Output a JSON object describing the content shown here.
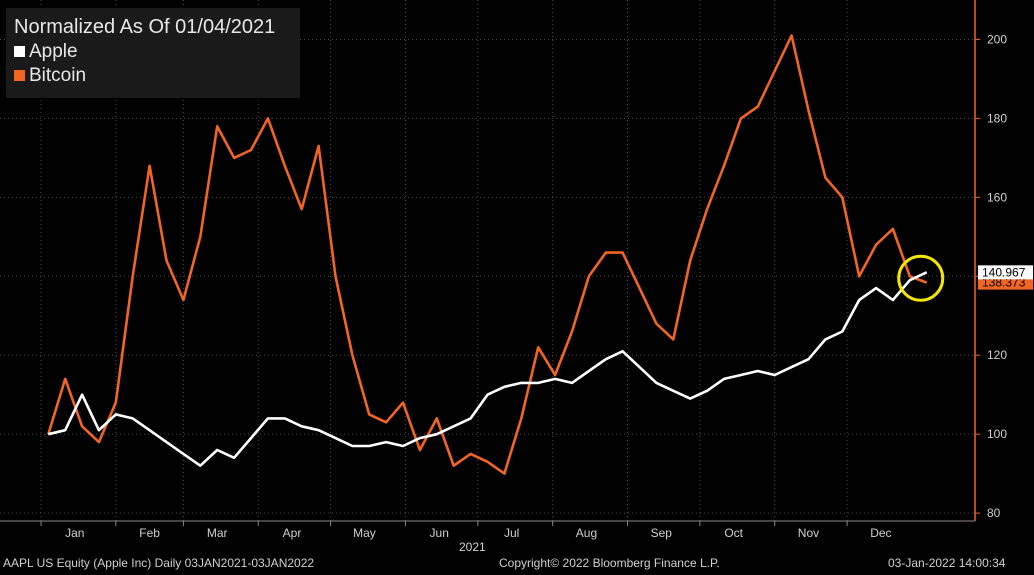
{
  "legend": {
    "title": "Normalized As Of 01/04/2021",
    "items": [
      {
        "name": "Apple",
        "color": "#ffffff"
      },
      {
        "name": "Bitcoin",
        "color": "#f26522"
      }
    ]
  },
  "footer": {
    "security": "AAPL US Equity (Apple Inc)  Daily 03JAN2021-03JAN2022",
    "copyright": "Copyright© 2022 Bloomberg Finance L.P.",
    "timestamp": "03-Jan-2022 14:00:34"
  },
  "colors": {
    "background": "#000000",
    "apple": "#ffffff",
    "bitcoin": "#f26522",
    "highlight": "#f5e600",
    "grid": "#555555"
  },
  "chart_data": {
    "type": "line",
    "title": "Normalized As Of 01/04/2021",
    "xlabel": "2021",
    "ylabel": "",
    "ylim": [
      78,
      210
    ],
    "yticks": [
      80,
      100,
      120,
      140,
      160,
      180,
      200
    ],
    "grid": true,
    "legend_position": "top-left",
    "x_tick_labels": [
      "Jan",
      "Feb",
      "Mar",
      "Apr",
      "May",
      "Jun",
      "Jul",
      "Aug",
      "Sep",
      "Oct",
      "Nov",
      "Dec"
    ],
    "x": [
      "2021-01-04",
      "2021-01-11",
      "2021-01-18",
      "2021-01-25",
      "2021-02-01",
      "2021-02-08",
      "2021-02-15",
      "2021-02-22",
      "2021-03-01",
      "2021-03-08",
      "2021-03-15",
      "2021-03-22",
      "2021-03-29",
      "2021-04-05",
      "2021-04-12",
      "2021-04-19",
      "2021-04-26",
      "2021-05-03",
      "2021-05-10",
      "2021-05-17",
      "2021-05-24",
      "2021-05-31",
      "2021-06-07",
      "2021-06-14",
      "2021-06-21",
      "2021-06-28",
      "2021-07-05",
      "2021-07-12",
      "2021-07-19",
      "2021-07-26",
      "2021-08-02",
      "2021-08-09",
      "2021-08-16",
      "2021-08-23",
      "2021-08-30",
      "2021-09-06",
      "2021-09-13",
      "2021-09-20",
      "2021-09-27",
      "2021-10-04",
      "2021-10-11",
      "2021-10-18",
      "2021-10-25",
      "2021-11-01",
      "2021-11-08",
      "2021-11-15",
      "2021-11-22",
      "2021-11-29",
      "2021-12-06",
      "2021-12-13",
      "2021-12-20",
      "2021-12-27",
      "2022-01-03"
    ],
    "series": [
      {
        "name": "Apple",
        "values": [
          100,
          101,
          110,
          101,
          105,
          104,
          101,
          98,
          95,
          92,
          96,
          94,
          99,
          104,
          104,
          102,
          101,
          99,
          97,
          97,
          98,
          97,
          99,
          100,
          102,
          104,
          110,
          112,
          113,
          113,
          114,
          113,
          116,
          119,
          121,
          117,
          113,
          111,
          109,
          111,
          114,
          115,
          116,
          115,
          117,
          119,
          124,
          126,
          134,
          137,
          134,
          139,
          141.0
        ]
      },
      {
        "name": "Bitcoin",
        "values": [
          100,
          114,
          102,
          98,
          108,
          140,
          168,
          144,
          134,
          150,
          178,
          170,
          172,
          180,
          168,
          157,
          173,
          140,
          120,
          105,
          103,
          108,
          96,
          104,
          92,
          95,
          93,
          90,
          104,
          122,
          115,
          126,
          140,
          146,
          146,
          137,
          128,
          124,
          144,
          157,
          168,
          180,
          183,
          192,
          201,
          182,
          165,
          160,
          140,
          148,
          152,
          140,
          138.4
        ]
      }
    ],
    "last_values": {
      "Apple": "140.967",
      "Bitcoin": "138.373"
    }
  }
}
